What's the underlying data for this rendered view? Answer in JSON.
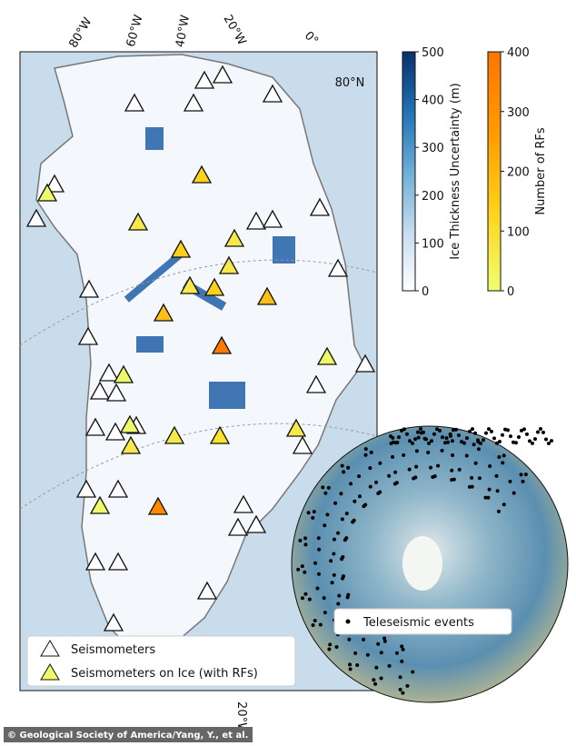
{
  "map": {
    "longitude_labels": [
      "80°W",
      "60°W",
      "40°W",
      "20°W",
      "0°"
    ],
    "bottom_longitude_label": "20°W",
    "latitude_label": "80°N",
    "legend": [
      "Seismometers",
      "Seismometers on Ice (with RFs)"
    ],
    "inset_legend": "Teleseismic events"
  },
  "colorbars": [
    {
      "label": "Ice Thickness Uncertainty (m)",
      "lim": [
        0,
        500
      ],
      "ticks": [
        0,
        100,
        200,
        300,
        400,
        500
      ],
      "colors": [
        "#ffffff",
        "#c6dbef",
        "#6baed6",
        "#2171b5",
        "#08306b"
      ]
    },
    {
      "label": "Number of RFs",
      "lim": [
        0,
        400
      ],
      "ticks": [
        0,
        100,
        200,
        300,
        400
      ],
      "colors": [
        "#f0ff70",
        "#ffd21a",
        "#ff9a00",
        "#ff7500"
      ]
    }
  ],
  "credit": "© Geological Society of America/Yang, Y., et al."
}
